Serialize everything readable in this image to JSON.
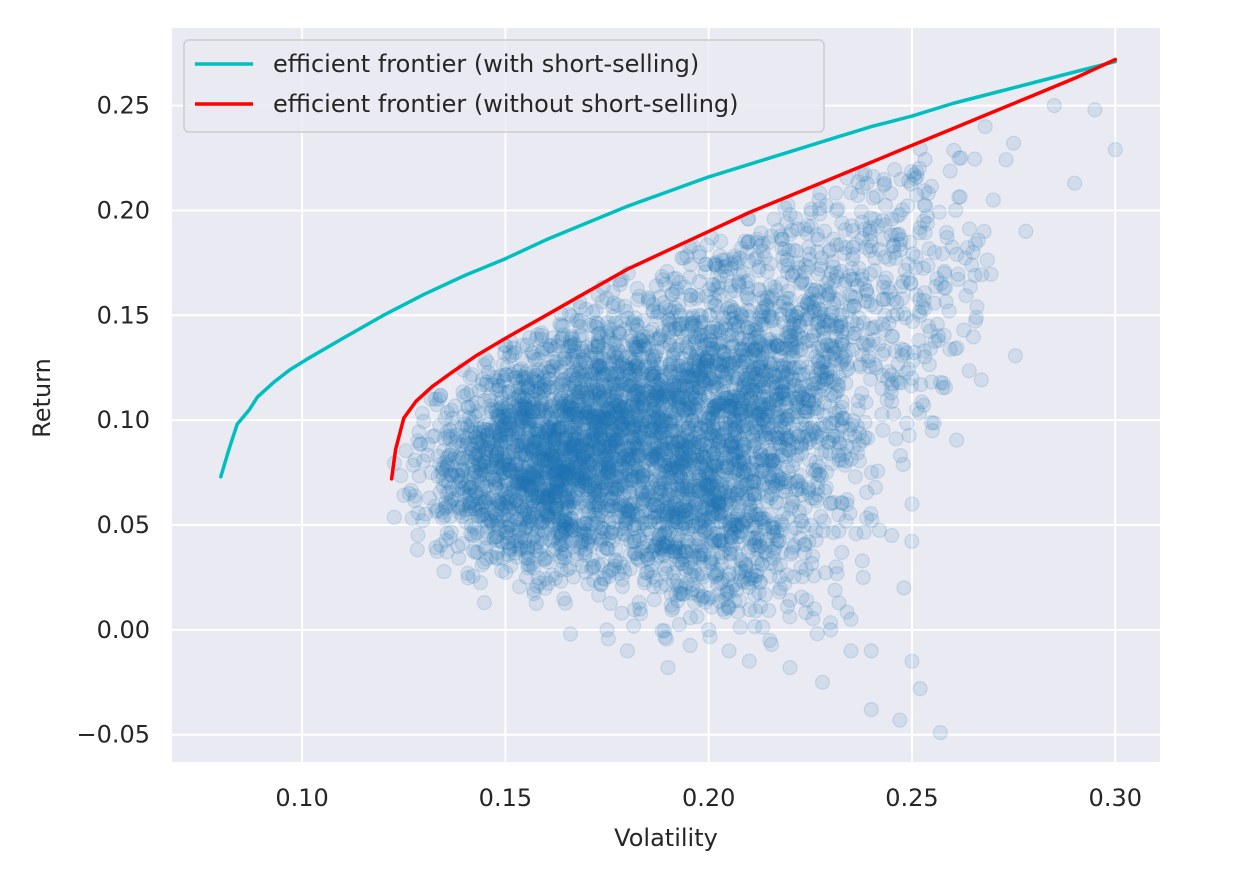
{
  "chart_data": {
    "type": "scatter",
    "xlabel": "Volatility",
    "ylabel": "Return",
    "xlim": [
      0.068,
      0.311
    ],
    "ylim": [
      -0.063,
      0.287
    ],
    "x_ticks": [
      0.1,
      0.15,
      0.2,
      0.25,
      0.3
    ],
    "x_tick_labels": [
      "0.10",
      "0.15",
      "0.20",
      "0.25",
      "0.30"
    ],
    "y_ticks": [
      -0.05,
      0.0,
      0.05,
      0.1,
      0.15,
      0.2,
      0.25
    ],
    "y_tick_labels": [
      "−0.05",
      "0.00",
      "0.05",
      "0.10",
      "0.15",
      "0.20",
      "0.25"
    ],
    "grid": true,
    "legend_position": "top-left",
    "colors": {
      "background": "#eaeaf2",
      "grid": "#ffffff",
      "scatter": "#1f77b4",
      "short_selling": "#00bfbf",
      "no_short_selling": "#ff0000"
    },
    "series": [
      {
        "name": "efficient frontier (with short-selling)",
        "kind": "line",
        "color": "#00bfbf",
        "x": [
          0.08,
          0.082,
          0.084,
          0.087,
          0.089,
          0.093,
          0.097,
          0.102,
          0.11,
          0.12,
          0.13,
          0.14,
          0.15,
          0.16,
          0.17,
          0.18,
          0.19,
          0.2,
          0.21,
          0.22,
          0.23,
          0.24,
          0.25,
          0.26,
          0.27,
          0.28,
          0.29,
          0.3
        ],
        "y": [
          0.073,
          0.086,
          0.098,
          0.105,
          0.111,
          0.118,
          0.124,
          0.13,
          0.139,
          0.15,
          0.16,
          0.169,
          0.177,
          0.186,
          0.194,
          0.202,
          0.209,
          0.216,
          0.222,
          0.228,
          0.234,
          0.24,
          0.245,
          0.251,
          0.256,
          0.261,
          0.266,
          0.271
        ]
      },
      {
        "name": "efficient frontier (without short-selling)",
        "kind": "line",
        "color": "#ff0000",
        "x": [
          0.122,
          0.123,
          0.125,
          0.128,
          0.132,
          0.137,
          0.143,
          0.15,
          0.16,
          0.17,
          0.18,
          0.19,
          0.2,
          0.21,
          0.22,
          0.23,
          0.24,
          0.25,
          0.26,
          0.27,
          0.28,
          0.29,
          0.3
        ],
        "y": [
          0.072,
          0.086,
          0.101,
          0.109,
          0.116,
          0.123,
          0.131,
          0.139,
          0.15,
          0.161,
          0.172,
          0.181,
          0.19,
          0.199,
          0.207,
          0.215,
          0.223,
          0.231,
          0.239,
          0.247,
          0.255,
          0.263,
          0.272
        ]
      },
      {
        "kind": "scatter",
        "color": "#1f77b4",
        "opacity": 0.12,
        "density_regions": [
          {
            "cx": 0.18,
            "cy": 0.095,
            "sx": 0.02,
            "sy": 0.032,
            "n": 2400
          },
          {
            "cx": 0.155,
            "cy": 0.075,
            "sx": 0.012,
            "sy": 0.022,
            "n": 900
          },
          {
            "cx": 0.215,
            "cy": 0.12,
            "sx": 0.014,
            "sy": 0.04,
            "n": 1100
          },
          {
            "cx": 0.2,
            "cy": 0.04,
            "sx": 0.015,
            "sy": 0.02,
            "n": 400
          },
          {
            "cx": 0.245,
            "cy": 0.17,
            "sx": 0.012,
            "sy": 0.035,
            "n": 300
          }
        ],
        "outliers": [
          [
            0.285,
            0.25
          ],
          [
            0.295,
            0.248
          ],
          [
            0.3,
            0.229
          ],
          [
            0.29,
            0.213
          ],
          [
            0.278,
            0.19
          ],
          [
            0.275,
            0.232
          ],
          [
            0.268,
            0.24
          ],
          [
            0.262,
            0.225
          ],
          [
            0.27,
            0.205
          ],
          [
            0.265,
            0.18
          ],
          [
            0.258,
            0.17
          ],
          [
            0.252,
            0.15
          ],
          [
            0.245,
            0.14
          ],
          [
            0.25,
            0.12
          ],
          [
            0.255,
            0.095
          ],
          [
            0.25,
            0.06
          ],
          [
            0.24,
            0.075
          ],
          [
            0.245,
            0.045
          ],
          [
            0.238,
            0.025
          ],
          [
            0.248,
            0.02
          ],
          [
            0.24,
            -0.01
          ],
          [
            0.25,
            -0.015
          ],
          [
            0.252,
            -0.028
          ],
          [
            0.24,
            -0.038
          ],
          [
            0.247,
            -0.043
          ],
          [
            0.257,
            -0.049
          ],
          [
            0.235,
            -0.01
          ],
          [
            0.228,
            -0.025
          ],
          [
            0.22,
            -0.018
          ],
          [
            0.21,
            -0.015
          ],
          [
            0.19,
            -0.018
          ],
          [
            0.205,
            -0.01
          ],
          [
            0.18,
            -0.01
          ],
          [
            0.175,
            0.0
          ],
          [
            0.166,
            -0.002
          ],
          [
            0.23,
            0.0
          ],
          [
            0.235,
            0.005
          ],
          [
            0.226,
            0.01
          ],
          [
            0.215,
            -0.005
          ],
          [
            0.2,
            0.0
          ]
        ]
      }
    ]
  }
}
